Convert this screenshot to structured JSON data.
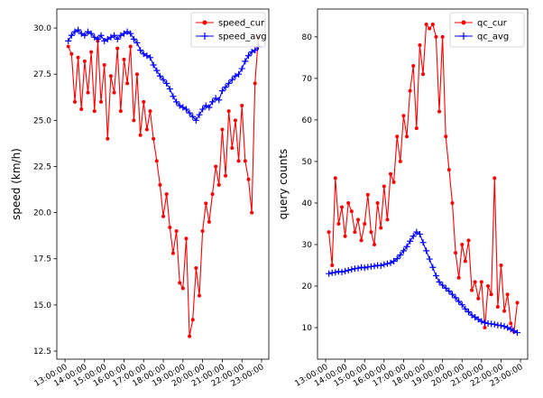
{
  "chart_data": [
    {
      "type": "line",
      "ylabel": "speed (km/h)",
      "legend": "upper right",
      "x": [
        "13:10:00",
        "13:20:00",
        "13:30:00",
        "13:40:00",
        "13:50:00",
        "14:00:00",
        "14:10:00",
        "14:20:00",
        "14:30:00",
        "14:40:00",
        "14:50:00",
        "15:00:00",
        "15:10:00",
        "15:20:00",
        "15:30:00",
        "15:40:00",
        "15:50:00",
        "16:00:00",
        "16:10:00",
        "16:20:00",
        "16:30:00",
        "16:40:00",
        "16:50:00",
        "17:00:00",
        "17:10:00",
        "17:20:00",
        "17:30:00",
        "17:40:00",
        "17:50:00",
        "18:00:00",
        "18:10:00",
        "18:20:00",
        "18:30:00",
        "18:40:00",
        "18:50:00",
        "19:00:00",
        "19:10:00",
        "19:20:00",
        "19:30:00",
        "19:40:00",
        "19:50:00",
        "20:00:00",
        "20:10:00",
        "20:20:00",
        "20:30:00",
        "20:40:00",
        "20:50:00",
        "21:00:00",
        "21:10:00",
        "21:20:00",
        "21:30:00",
        "21:40:00",
        "21:50:00",
        "22:00:00",
        "22:10:00",
        "22:20:00",
        "22:30:00",
        "22:40:00",
        "22:50:00"
      ],
      "series": [
        {
          "name": "speed_cur",
          "color": "#ff0000",
          "marker": "o",
          "values": [
            29.0,
            28.6,
            26.0,
            28.4,
            25.6,
            28.2,
            26.5,
            28.7,
            25.5,
            29.3,
            26.0,
            28.0,
            24.0,
            27.4,
            26.5,
            28.9,
            25.5,
            28.3,
            27.0,
            29.0,
            25.0,
            27.5,
            24.2,
            26.0,
            24.5,
            25.5,
            24.0,
            22.8,
            21.5,
            19.8,
            21.0,
            19.2,
            17.8,
            19.0,
            16.2,
            15.9,
            18.6,
            13.3,
            14.2,
            17.0,
            15.5,
            19.0,
            20.5,
            19.5,
            21.0,
            22.5,
            21.5,
            24.5,
            22.0,
            25.5,
            23.5,
            25.0,
            22.8,
            25.8,
            22.8,
            21.8,
            20.0,
            27.0,
            29.5
          ]
        },
        {
          "name": "speed_avg",
          "color": "#0000ff",
          "marker": "+",
          "values": [
            29.3,
            29.6,
            29.8,
            29.9,
            29.7,
            29.6,
            29.8,
            29.7,
            29.5,
            29.4,
            29.6,
            29.3,
            29.4,
            29.5,
            29.6,
            29.4,
            29.6,
            29.7,
            29.8,
            29.7,
            29.4,
            29.2,
            28.8,
            28.6,
            28.5,
            28.4,
            28.0,
            27.7,
            27.4,
            27.2,
            27.0,
            26.7,
            26.3,
            26.0,
            25.8,
            25.7,
            25.6,
            25.4,
            25.2,
            25.0,
            25.3,
            25.6,
            25.8,
            25.7,
            26.0,
            26.2,
            26.1,
            26.6,
            26.8,
            27.0,
            27.2,
            27.4,
            27.5,
            27.8,
            28.2,
            28.5,
            28.7,
            28.8,
            29.0
          ]
        }
      ],
      "xlim": [
        "12:35:00",
        "23:22:00"
      ],
      "xticks": [
        "13:00:00",
        "14:00:00",
        "15:00:00",
        "16:00:00",
        "17:00:00",
        "18:00:00",
        "19:00:00",
        "20:00:00",
        "21:00:00",
        "22:00:00",
        "23:00:00"
      ],
      "ylim": [
        12.06,
        31.03
      ],
      "yticks": [
        12.5,
        {
          "value": 15,
          "label": "15.0"
        },
        17.5,
        {
          "value": 20,
          "label": "20.0"
        },
        22.5,
        {
          "value": 25,
          "label": "25.0"
        },
        27.5,
        {
          "value": 30,
          "label": "30.0"
        }
      ]
    },
    {
      "type": "line",
      "ylabel": "query counts",
      "legend": "upper right",
      "x": [
        "13:10:00",
        "13:20:00",
        "13:30:00",
        "13:40:00",
        "13:50:00",
        "14:00:00",
        "14:10:00",
        "14:20:00",
        "14:30:00",
        "14:40:00",
        "14:50:00",
        "15:00:00",
        "15:10:00",
        "15:20:00",
        "15:30:00",
        "15:40:00",
        "15:50:00",
        "16:00:00",
        "16:10:00",
        "16:20:00",
        "16:30:00",
        "16:40:00",
        "16:50:00",
        "17:00:00",
        "17:10:00",
        "17:20:00",
        "17:30:00",
        "17:40:00",
        "17:50:00",
        "18:00:00",
        "18:10:00",
        "18:20:00",
        "18:30:00",
        "18:40:00",
        "18:50:00",
        "19:00:00",
        "19:10:00",
        "19:20:00",
        "19:30:00",
        "19:40:00",
        "19:50:00",
        "20:00:00",
        "20:10:00",
        "20:20:00",
        "20:30:00",
        "20:40:00",
        "20:50:00",
        "21:00:00",
        "21:10:00",
        "21:20:00",
        "21:30:00",
        "21:40:00",
        "21:50:00",
        "22:00:00",
        "22:10:00",
        "22:20:00",
        "22:30:00",
        "22:40:00",
        "22:50:00"
      ],
      "series": [
        {
          "name": "qc_cur",
          "color": "#ff0000",
          "marker": "o",
          "values": [
            33,
            25,
            46,
            35,
            39,
            32,
            40,
            38,
            33,
            36,
            31,
            35,
            42,
            33,
            30,
            40,
            34,
            44,
            36,
            47,
            45,
            56,
            50,
            61,
            56,
            67,
            73,
            58,
            78,
            71,
            83,
            82,
            83,
            80,
            62,
            80,
            56,
            48,
            40,
            28,
            22,
            30,
            26,
            31,
            19,
            21,
            17,
            21,
            10,
            20,
            18,
            46,
            15,
            25,
            14,
            18,
            11,
            9,
            16
          ]
        },
        {
          "name": "qc_avg",
          "color": "#0000ff",
          "marker": "+",
          "values": [
            23.0,
            23.2,
            23.3,
            23.5,
            23.4,
            23.6,
            23.8,
            24.0,
            24.2,
            24.3,
            24.5,
            24.4,
            24.6,
            24.7,
            24.8,
            25.0,
            24.9,
            25.2,
            25.4,
            25.6,
            26.0,
            26.6,
            27.5,
            28.5,
            29.5,
            30.8,
            32.0,
            33.0,
            32.5,
            30.5,
            28.5,
            26.5,
            24.5,
            22.5,
            21.0,
            20.2,
            19.5,
            18.8,
            18.0,
            17.2,
            16.3,
            15.5,
            14.5,
            13.8,
            13.0,
            12.5,
            12.0,
            11.5,
            11.2,
            11.0,
            10.9,
            10.8,
            10.6,
            10.5,
            10.3,
            10.0,
            9.6,
            9.2,
            8.8
          ]
        }
      ],
      "xlim": [
        "12:35:00",
        "23:22:00"
      ],
      "xticks": [
        "13:00:00",
        "14:00:00",
        "15:00:00",
        "16:00:00",
        "17:00:00",
        "18:00:00",
        "19:00:00",
        "20:00:00",
        "21:00:00",
        "22:00:00",
        "23:00:00"
      ],
      "ylim": [
        2.4,
        86.7
      ],
      "yticks": [
        10,
        20,
        30,
        40,
        50,
        60,
        70,
        80
      ]
    }
  ]
}
